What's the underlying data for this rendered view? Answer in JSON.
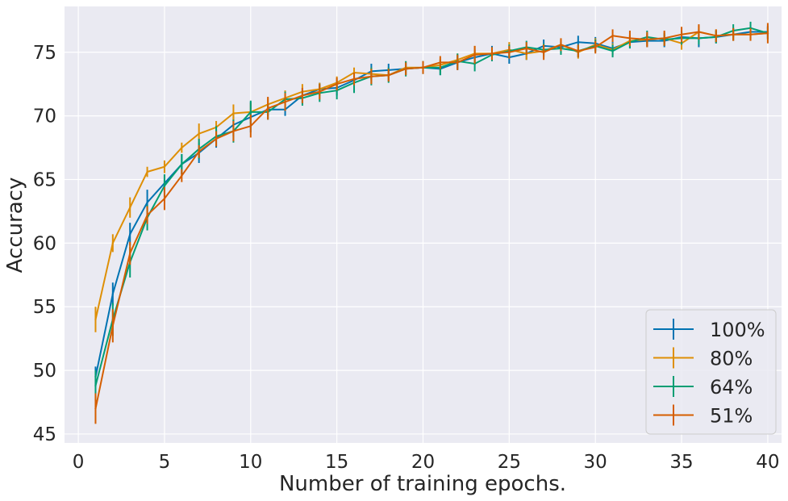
{
  "chart_data": {
    "type": "line",
    "title": "",
    "xlabel": "Number of training epochs.",
    "ylabel": "Accuracy",
    "xlim": [
      -0.8,
      40.8
    ],
    "ylim": [
      44.3,
      78.6
    ],
    "xticks": [
      0,
      5,
      10,
      15,
      20,
      25,
      30,
      35,
      40
    ],
    "yticks": [
      45,
      50,
      55,
      60,
      65,
      70,
      75
    ],
    "grid": true,
    "legend_position": "bottom-right",
    "x": [
      1,
      2,
      3,
      4,
      5,
      6,
      7,
      8,
      9,
      10,
      11,
      12,
      13,
      14,
      15,
      16,
      17,
      18,
      19,
      20,
      21,
      22,
      23,
      24,
      25,
      26,
      27,
      28,
      29,
      30,
      31,
      32,
      33,
      34,
      35,
      36,
      37,
      38,
      39,
      40
    ],
    "series": [
      {
        "name": "100%",
        "color": "#0173b2",
        "values": [
          49.5,
          56.0,
          60.7,
          63.2,
          64.7,
          66.2,
          67.1,
          68.2,
          69.3,
          69.9,
          70.5,
          70.5,
          71.6,
          72.1,
          72.2,
          72.8,
          73.5,
          73.6,
          73.7,
          73.8,
          73.7,
          74.2,
          74.6,
          74.9,
          74.6,
          74.9,
          75.5,
          75.4,
          75.8,
          75.7,
          75.3,
          75.8,
          75.9,
          75.9,
          76.2,
          76.1,
          76.2,
          76.4,
          76.6,
          76.6
        ],
        "errors": [
          0.8,
          0.9,
          0.9,
          1.0,
          0.7,
          0.8,
          0.8,
          0.7,
          0.9,
          1.2,
          0.5,
          0.5,
          0.6,
          0.5,
          0.6,
          0.5,
          0.6,
          0.5,
          0.5,
          0.5,
          0.5,
          0.6,
          0.6,
          0.6,
          0.5,
          0.5,
          0.5,
          0.5,
          0.5,
          0.5,
          0.5,
          0.5,
          0.5,
          0.5,
          0.5,
          0.7,
          0.5,
          0.5,
          0.5,
          0.5
        ]
      },
      {
        "name": "80%",
        "color": "#de8f05",
        "values": [
          54.0,
          60.0,
          62.8,
          65.6,
          66.0,
          67.5,
          68.6,
          69.1,
          70.2,
          70.3,
          70.9,
          71.4,
          71.9,
          72.1,
          72.6,
          73.4,
          73.3,
          73.2,
          73.8,
          73.8,
          74.0,
          74.4,
          74.9,
          74.9,
          75.2,
          74.9,
          75.1,
          75.6,
          75.0,
          75.6,
          75.2,
          75.9,
          76.0,
          76.1,
          75.7,
          76.6,
          76.3,
          76.4,
          76.4,
          76.5
        ],
        "errors": [
          1.0,
          0.7,
          0.8,
          0.4,
          0.5,
          0.4,
          0.8,
          0.5,
          0.7,
          0.7,
          0.5,
          0.6,
          0.6,
          0.5,
          0.5,
          0.4,
          0.5,
          0.5,
          0.5,
          0.5,
          0.5,
          0.5,
          0.6,
          0.5,
          0.6,
          0.5,
          0.5,
          0.5,
          0.5,
          0.5,
          0.5,
          0.5,
          0.5,
          0.5,
          0.5,
          0.5,
          0.5,
          0.5,
          0.5,
          0.5
        ]
      },
      {
        "name": "64%",
        "color": "#029e73",
        "values": [
          48.8,
          54.0,
          58.5,
          62.0,
          64.5,
          66.2,
          67.4,
          68.4,
          68.8,
          70.3,
          70.3,
          71.3,
          71.4,
          71.8,
          72.0,
          72.6,
          73.1,
          73.2,
          73.7,
          73.8,
          73.8,
          74.3,
          74.1,
          74.8,
          75.1,
          75.4,
          75.2,
          75.3,
          75.1,
          75.5,
          75.1,
          75.8,
          76.2,
          76.0,
          76.1,
          76.1,
          76.2,
          76.7,
          76.9,
          76.5
        ],
        "errors": [
          1.2,
          1.3,
          1.2,
          1.0,
          0.9,
          0.8,
          0.8,
          0.8,
          0.9,
          0.9,
          0.6,
          0.6,
          0.6,
          0.7,
          0.7,
          0.8,
          0.7,
          0.6,
          0.6,
          0.5,
          0.6,
          0.6,
          0.6,
          0.5,
          0.5,
          0.5,
          0.5,
          0.5,
          0.5,
          0.5,
          0.5,
          0.5,
          0.5,
          0.5,
          0.5,
          0.5,
          0.5,
          0.5,
          0.5,
          0.5
        ]
      },
      {
        "name": "51%",
        "color": "#d55e00",
        "values": [
          47.0,
          53.5,
          59.2,
          62.2,
          63.5,
          65.3,
          67.2,
          68.2,
          68.8,
          69.2,
          70.6,
          71.1,
          71.6,
          71.9,
          72.5,
          72.9,
          73.1,
          73.2,
          73.7,
          73.8,
          74.2,
          74.2,
          74.8,
          74.9,
          75.0,
          75.3,
          75.0,
          75.6,
          75.1,
          75.4,
          76.3,
          76.1,
          76.0,
          76.1,
          76.4,
          76.6,
          76.3,
          76.4,
          76.4,
          76.5
        ],
        "errors": [
          1.2,
          1.3,
          0.9,
          0.7,
          0.9,
          0.5,
          0.5,
          0.6,
          0.8,
          0.9,
          0.9,
          0.7,
          0.6,
          0.6,
          0.5,
          0.5,
          0.6,
          0.5,
          0.5,
          0.5,
          0.5,
          0.6,
          0.7,
          0.5,
          0.5,
          0.5,
          0.6,
          0.5,
          0.5,
          0.5,
          0.5,
          0.6,
          0.6,
          0.6,
          0.6,
          0.6,
          0.5,
          0.5,
          0.5,
          0.8
        ]
      }
    ]
  }
}
